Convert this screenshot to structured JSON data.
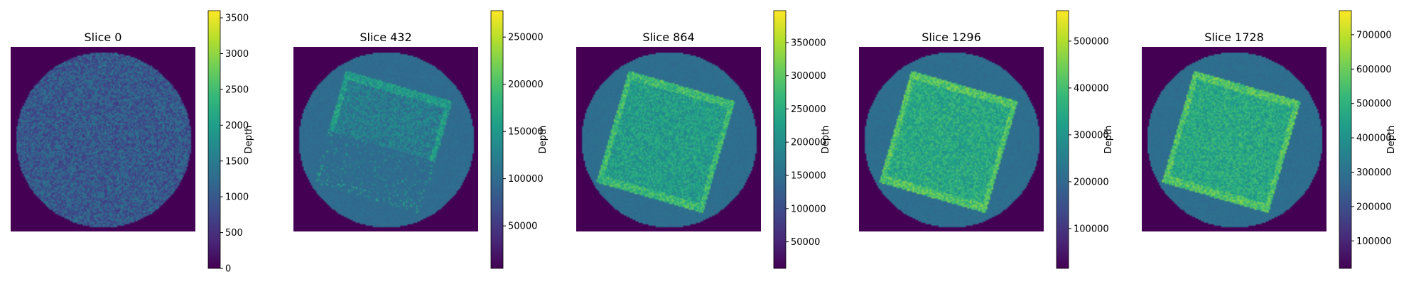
{
  "chart_data": [
    {
      "type": "heatmap",
      "title": "Slice 0",
      "colorbar": {
        "label": "Depth",
        "range": [
          0,
          3600
        ],
        "ticks": [
          0,
          500,
          1000,
          1500,
          2000,
          2500,
          3000,
          3500
        ],
        "tick_labels": [
          "0",
          "500",
          "1000",
          "1500",
          "2000",
          "2500",
          "3000",
          "3500"
        ]
      },
      "colormap": "viridis",
      "content": {
        "disk_level": 0.28,
        "disk_noise": 0.1,
        "square": null
      }
    },
    {
      "type": "heatmap",
      "title": "Slice 432",
      "colorbar": {
        "label": "Depth",
        "range": [
          5000,
          278000
        ],
        "ticks": [
          50000,
          100000,
          150000,
          200000,
          250000
        ],
        "tick_labels": [
          "50000",
          "100000",
          "150000",
          "200000",
          "250000"
        ]
      },
      "colormap": "viridis",
      "content": {
        "disk_level": 0.35,
        "disk_noise": 0.02,
        "square": {
          "level": 0.42,
          "partial": true
        }
      }
    },
    {
      "type": "heatmap",
      "title": "Slice 864",
      "colorbar": {
        "label": "Depth",
        "range": [
          10000,
          398000
        ],
        "ticks": [
          50000,
          100000,
          150000,
          200000,
          250000,
          300000,
          350000
        ],
        "tick_labels": [
          "50000",
          "100000",
          "150000",
          "200000",
          "250000",
          "300000",
          "350000"
        ]
      },
      "colormap": "viridis",
      "content": {
        "disk_level": 0.36,
        "disk_noise": 0.02,
        "square": {
          "level": 0.55,
          "partial": false
        }
      }
    },
    {
      "type": "heatmap",
      "title": "Slice 1296",
      "colorbar": {
        "label": "Depth",
        "range": [
          15000,
          565000
        ],
        "ticks": [
          100000,
          200000,
          300000,
          400000,
          500000
        ],
        "tick_labels": [
          "100000",
          "200000",
          "300000",
          "400000",
          "500000"
        ]
      },
      "colormap": "viridis",
      "content": {
        "disk_level": 0.36,
        "disk_noise": 0.02,
        "square": {
          "level": 0.6,
          "partial": false
        }
      }
    },
    {
      "type": "heatmap",
      "title": "Slice 1728",
      "colorbar": {
        "label": "Depth",
        "range": [
          20000,
          770000
        ],
        "ticks": [
          100000,
          200000,
          300000,
          400000,
          500000,
          600000,
          700000
        ],
        "tick_labels": [
          "100000",
          "200000",
          "300000",
          "400000",
          "500000",
          "600000",
          "700000"
        ]
      },
      "colormap": "viridis",
      "content": {
        "disk_level": 0.36,
        "disk_noise": 0.02,
        "square": {
          "level": 0.6,
          "partial": false
        }
      }
    }
  ]
}
